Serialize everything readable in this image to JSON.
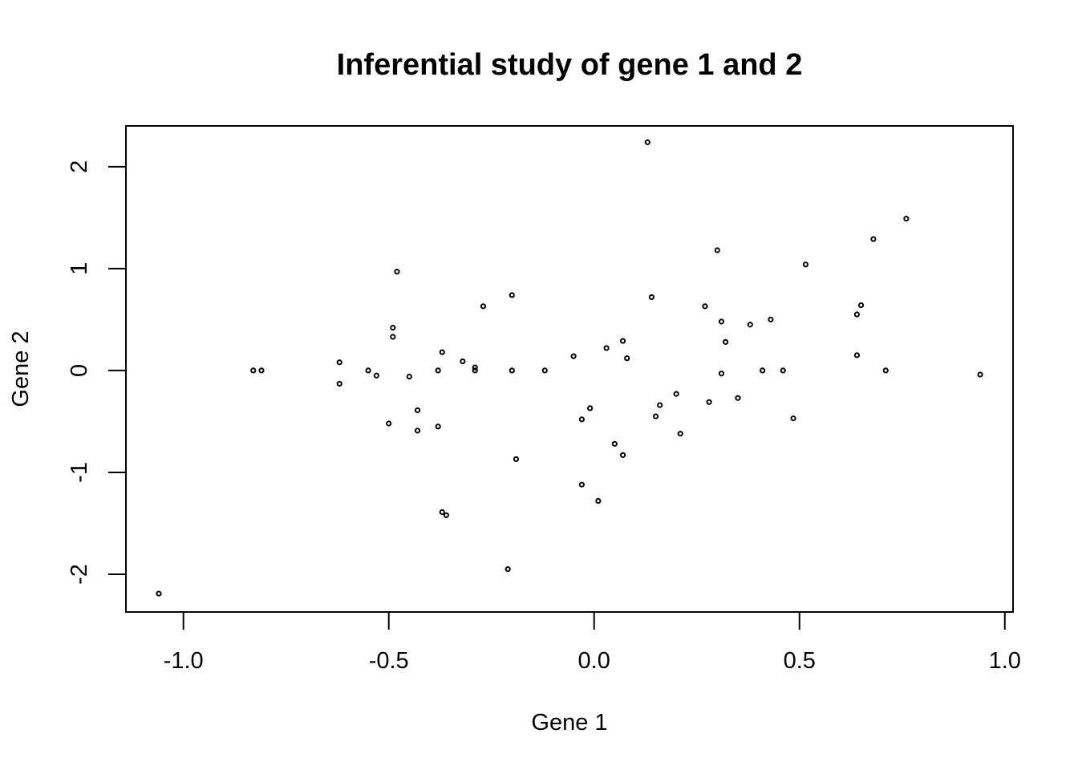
{
  "chart_data": {
    "type": "scatter",
    "title": "Inferential study of gene 1 and 2",
    "xlabel": "Gene 1",
    "ylabel": "Gene 2",
    "xlim": [
      -1.14,
      1.02
    ],
    "ylim": [
      -2.37,
      2.4
    ],
    "xticks": [
      -1.0,
      -0.5,
      0.0,
      0.5,
      1.0
    ],
    "xtick_labels": [
      "-1.0",
      "-0.5",
      "0.0",
      "0.5",
      "1.0"
    ],
    "yticks": [
      -2,
      -1,
      0,
      1,
      2
    ],
    "ytick_labels": [
      "-2",
      "-1",
      "0",
      "1",
      "2"
    ],
    "grid": false,
    "legend": "none",
    "points": [
      {
        "x": -1.06,
        "y": -2.19
      },
      {
        "x": -0.83,
        "y": 0.0
      },
      {
        "x": -0.81,
        "y": 0.0
      },
      {
        "x": -0.62,
        "y": 0.08
      },
      {
        "x": -0.62,
        "y": -0.13
      },
      {
        "x": -0.55,
        "y": 0.0
      },
      {
        "x": -0.53,
        "y": -0.05
      },
      {
        "x": -0.5,
        "y": -0.52
      },
      {
        "x": -0.49,
        "y": 0.42
      },
      {
        "x": -0.49,
        "y": 0.33
      },
      {
        "x": -0.48,
        "y": 0.97
      },
      {
        "x": -0.45,
        "y": -0.06
      },
      {
        "x": -0.43,
        "y": -0.39
      },
      {
        "x": -0.43,
        "y": -0.59
      },
      {
        "x": -0.38,
        "y": 0.0
      },
      {
        "x": -0.38,
        "y": -0.55
      },
      {
        "x": -0.37,
        "y": 0.18
      },
      {
        "x": -0.37,
        "y": -1.39
      },
      {
        "x": -0.36,
        "y": -1.42
      },
      {
        "x": -0.32,
        "y": 0.09
      },
      {
        "x": -0.29,
        "y": 0.03
      },
      {
        "x": -0.29,
        "y": 0.0
      },
      {
        "x": -0.27,
        "y": 0.63
      },
      {
        "x": -0.21,
        "y": -1.95
      },
      {
        "x": -0.2,
        "y": 0.74
      },
      {
        "x": -0.2,
        "y": 0.0
      },
      {
        "x": -0.19,
        "y": -0.87
      },
      {
        "x": -0.12,
        "y": 0.0
      },
      {
        "x": -0.05,
        "y": 0.14
      },
      {
        "x": -0.03,
        "y": -0.48
      },
      {
        "x": -0.03,
        "y": -1.12
      },
      {
        "x": -0.01,
        "y": -0.37
      },
      {
        "x": 0.01,
        "y": -1.28
      },
      {
        "x": 0.03,
        "y": 0.22
      },
      {
        "x": 0.05,
        "y": -0.72
      },
      {
        "x": 0.07,
        "y": 0.29
      },
      {
        "x": 0.07,
        "y": -0.83
      },
      {
        "x": 0.08,
        "y": 0.12
      },
      {
        "x": 0.13,
        "y": 2.24
      },
      {
        "x": 0.14,
        "y": 0.72
      },
      {
        "x": 0.15,
        "y": -0.45
      },
      {
        "x": 0.16,
        "y": -0.34
      },
      {
        "x": 0.2,
        "y": -0.23
      },
      {
        "x": 0.21,
        "y": -0.62
      },
      {
        "x": 0.27,
        "y": 0.63
      },
      {
        "x": 0.28,
        "y": -0.31
      },
      {
        "x": 0.3,
        "y": 1.18
      },
      {
        "x": 0.31,
        "y": 0.48
      },
      {
        "x": 0.31,
        "y": -0.03
      },
      {
        "x": 0.32,
        "y": 0.28
      },
      {
        "x": 0.35,
        "y": -0.27
      },
      {
        "x": 0.38,
        "y": 0.45
      },
      {
        "x": 0.41,
        "y": 0.0
      },
      {
        "x": 0.43,
        "y": 0.5
      },
      {
        "x": 0.46,
        "y": 0.0
      },
      {
        "x": 0.485,
        "y": -0.47
      },
      {
        "x": 0.515,
        "y": 1.04
      },
      {
        "x": 0.64,
        "y": 0.55
      },
      {
        "x": 0.64,
        "y": 0.15
      },
      {
        "x": 0.65,
        "y": 0.64
      },
      {
        "x": 0.68,
        "y": 1.29
      },
      {
        "x": 0.71,
        "y": 0.0
      },
      {
        "x": 0.76,
        "y": 1.49
      },
      {
        "x": 0.94,
        "y": -0.04
      }
    ]
  }
}
